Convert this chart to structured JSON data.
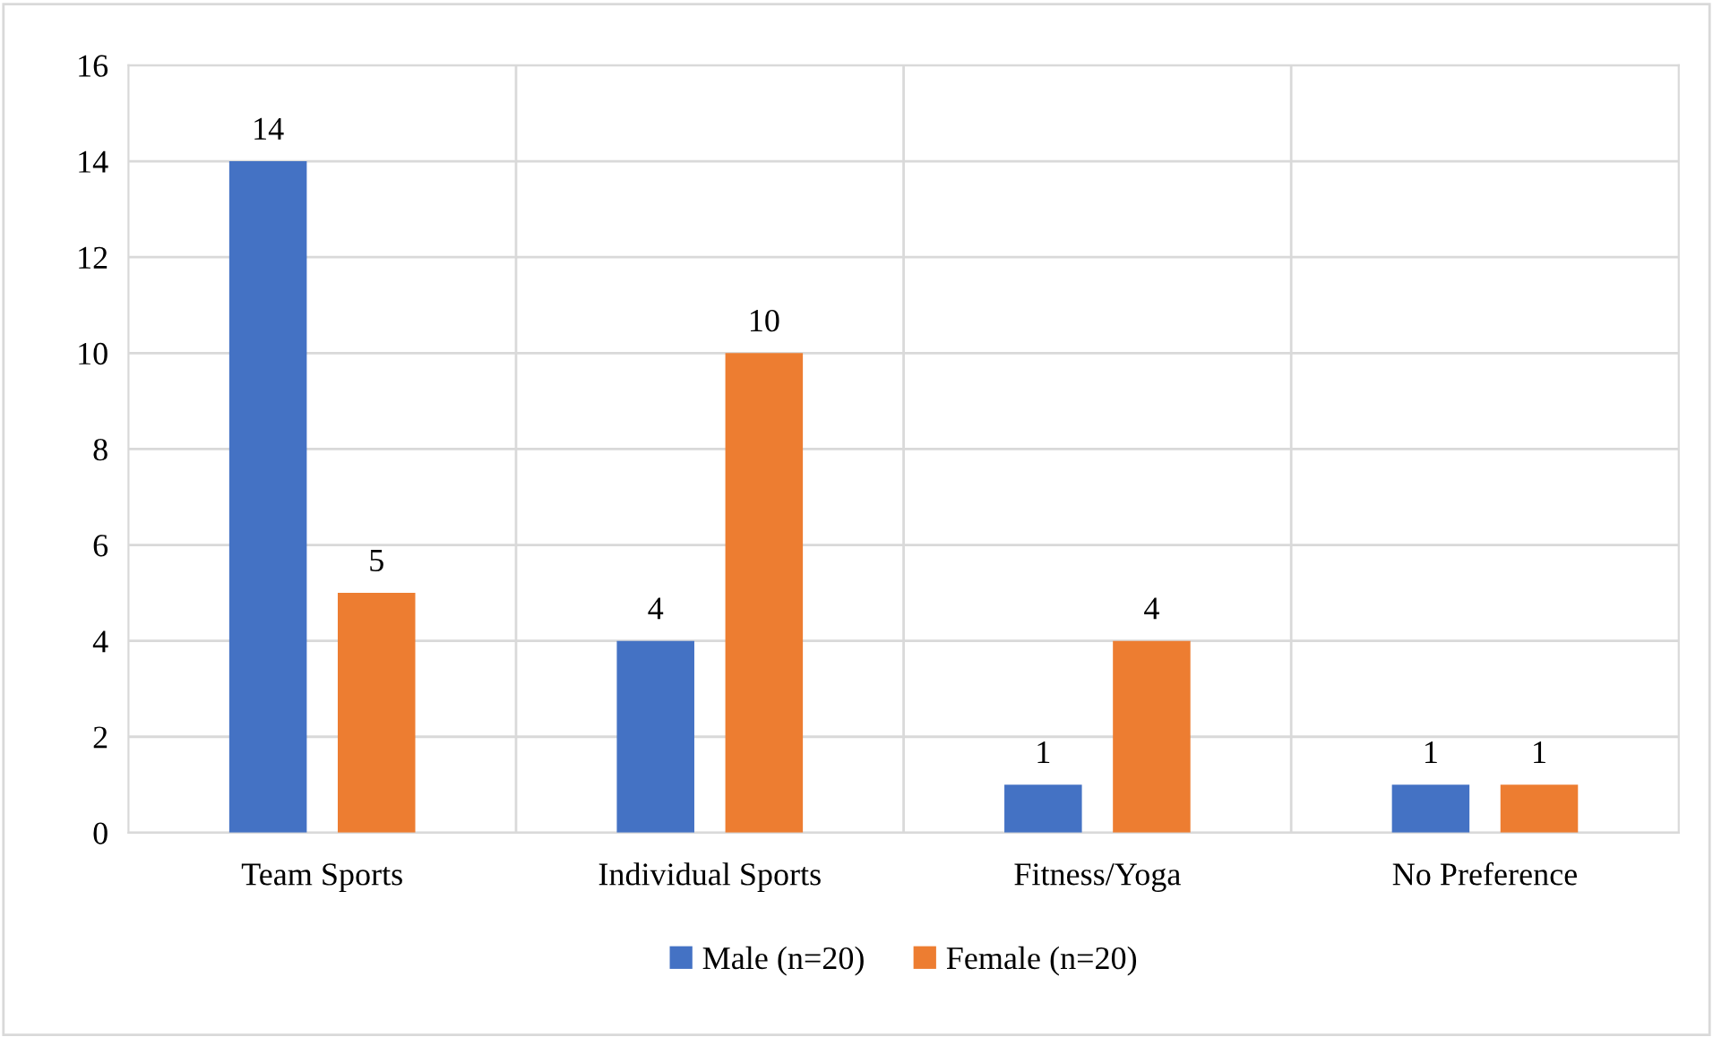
{
  "chart_data": {
    "type": "bar",
    "categories": [
      "Team Sports",
      "Individual Sports",
      "Fitness/Yoga",
      "No Preference"
    ],
    "series": [
      {
        "name": "Male (n=20)",
        "color": "#4472c4",
        "values": [
          14,
          4,
          1,
          1
        ]
      },
      {
        "name": "Female (n=20)",
        "color": "#ed7d31",
        "values": [
          5,
          10,
          4,
          1
        ]
      }
    ],
    "ylim": [
      0,
      16
    ],
    "yticks": [
      0,
      2,
      4,
      6,
      8,
      10,
      12,
      14,
      16
    ],
    "grid": true,
    "legend": "bottom",
    "data_labels": true
  }
}
